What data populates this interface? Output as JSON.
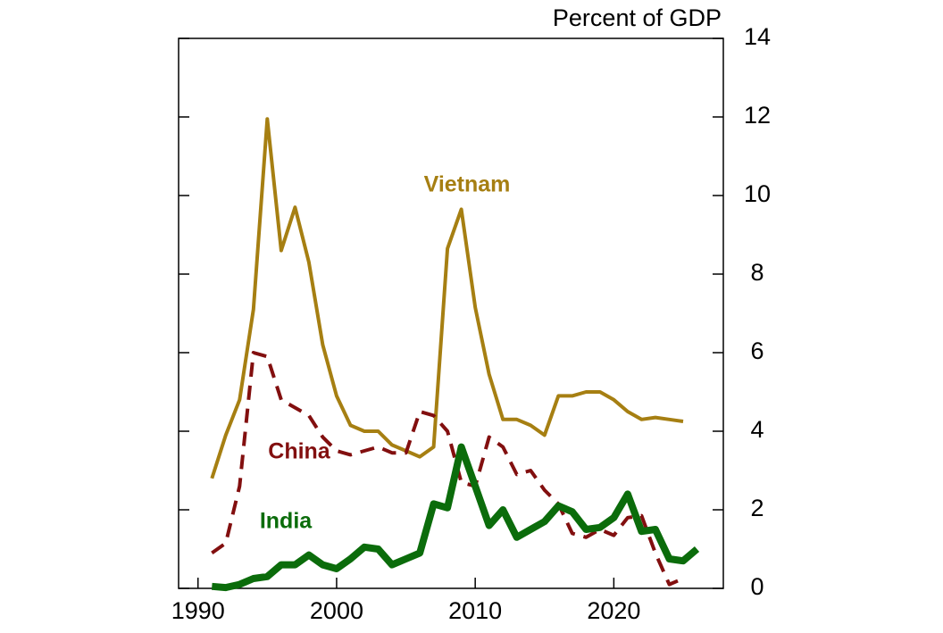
{
  "chart_data": {
    "type": "line",
    "y_label": "Percent of GDP",
    "x": [
      1991,
      1992,
      1993,
      1994,
      1995,
      1996,
      1997,
      1998,
      1999,
      2000,
      2001,
      2002,
      2003,
      2004,
      2005,
      2006,
      2007,
      2008,
      2009,
      2010,
      2011,
      2012,
      2013,
      2014,
      2015,
      2016,
      2017,
      2018,
      2019,
      2020,
      2021,
      2022,
      2023,
      2024,
      2025,
      2026
    ],
    "series": [
      {
        "name": "Vietnam",
        "color": "#a67f12",
        "dash": false,
        "width": 4,
        "values": [
          2.8,
          3.9,
          4.8,
          7.1,
          11.95,
          8.6,
          9.7,
          8.3,
          6.2,
          4.9,
          4.15,
          4.0,
          4.0,
          3.65,
          3.5,
          3.35,
          3.6,
          8.65,
          9.65,
          7.15,
          5.45,
          4.3,
          4.3,
          4.15,
          3.9,
          4.9,
          4.9,
          5.0,
          5.0,
          4.8,
          4.5,
          4.3,
          4.35,
          4.3,
          4.25,
          null
        ]
      },
      {
        "name": "China",
        "color": "#820f0f",
        "dash": true,
        "width": 4,
        "values": [
          0.9,
          1.15,
          2.6,
          6.0,
          5.9,
          4.8,
          4.6,
          4.4,
          3.85,
          3.5,
          3.4,
          3.5,
          3.6,
          3.45,
          3.45,
          4.5,
          4.4,
          4.0,
          2.7,
          2.6,
          3.85,
          3.6,
          2.9,
          3.0,
          2.5,
          2.15,
          1.4,
          1.3,
          1.5,
          1.35,
          1.8,
          1.85,
          0.9,
          0.1,
          0.25,
          null
        ]
      },
      {
        "name": "India",
        "color": "#0b6c0b",
        "dash": false,
        "width": 8,
        "values": [
          0.05,
          0.02,
          0.1,
          0.25,
          0.3,
          0.6,
          0.6,
          0.85,
          0.6,
          0.5,
          0.75,
          1.05,
          1.0,
          0.6,
          0.75,
          0.9,
          2.15,
          2.05,
          3.6,
          2.6,
          1.6,
          2.0,
          1.3,
          1.5,
          1.7,
          2.1,
          1.95,
          1.5,
          1.55,
          1.8,
          2.4,
          1.45,
          1.5,
          0.75,
          0.7,
          1.0
        ]
      }
    ],
    "xlim": [
      1988.6,
      2027.9
    ],
    "xticks": [
      1990,
      2000,
      2010,
      2020
    ],
    "ylim": [
      0,
      14
    ],
    "yticks": [
      0,
      2,
      4,
      6,
      8,
      10,
      12,
      14
    ],
    "y_axis_side": "right",
    "grid": false
  }
}
